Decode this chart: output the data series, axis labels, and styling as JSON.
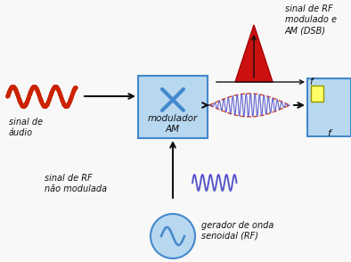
{
  "bg_color": "#f8f8f8",
  "box_color": "#b8d8f0",
  "box_edge": "#4488cc",
  "circle_color": "#b8d8f0",
  "circle_edge": "#4488cc",
  "right_box_color": "#b8d8f0",
  "right_box_edge": "#4488cc",
  "yellow_rect_color": "#ffff66",
  "yellow_rect_edge": "#999900",
  "audio_wave_color": "#cc2200",
  "am_carrier_color": "#5555cc",
  "am_env_color": "#cc2200",
  "rf_wave_color": "#5555cc",
  "triangle_color": "#cc1111",
  "triangle_edge": "#aa0000",
  "arrow_color": "#111111",
  "text_color": "#111111",
  "title_text": "sinal de RF\nmodulado e\nAM (DSB)",
  "label_audio": "sinal de\náudio",
  "label_mod": "modulador\nAM",
  "label_rf_nm": "sinal de RF\nnão modulada",
  "label_gen": "gerador de onda\nsenoidal (RF)",
  "label_f": "f"
}
